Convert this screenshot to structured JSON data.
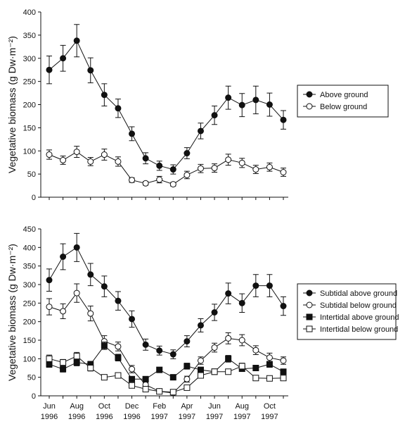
{
  "chart_data": [
    {
      "type": "line",
      "ylabel": "Vegetative biomass (g Dw·m⁻²)",
      "ylim": [
        0,
        400
      ],
      "yticks": [
        0,
        50,
        100,
        150,
        200,
        250,
        300,
        350,
        400
      ],
      "series": [
        {
          "name": "Above ground",
          "marker": "filled-circle",
          "values": [
            275,
            300,
            338,
            274,
            221,
            192,
            137,
            84,
            68,
            60,
            95,
            143,
            177,
            215,
            199,
            210,
            200,
            167
          ],
          "errors": [
            30,
            28,
            35,
            27,
            24,
            20,
            15,
            12,
            10,
            10,
            12,
            17,
            20,
            25,
            25,
            30,
            25,
            20
          ]
        },
        {
          "name": "Below ground",
          "marker": "open-circle",
          "values": [
            92,
            80,
            98,
            77,
            92,
            77,
            37,
            30,
            38,
            28,
            48,
            62,
            63,
            81,
            74,
            60,
            65,
            54
          ],
          "errors": [
            10,
            9,
            12,
            9,
            12,
            10,
            5,
            4,
            7,
            4,
            8,
            9,
            9,
            12,
            10,
            9,
            9,
            9
          ]
        }
      ]
    },
    {
      "type": "line",
      "ylabel": "Vegetative biomass (g Dw·m⁻²)",
      "ylim": [
        0,
        450
      ],
      "yticks": [
        0,
        50,
        100,
        150,
        200,
        250,
        300,
        350,
        400,
        450
      ],
      "xticks": [
        {
          "month": "Jun",
          "year": "1996"
        },
        {
          "month": "Aug",
          "year": "1996"
        },
        {
          "month": "Oct",
          "year": "1996"
        },
        {
          "month": "Dec",
          "year": "1996"
        },
        {
          "month": "Feb",
          "year": "1997"
        },
        {
          "month": "Apr",
          "year": "1997"
        },
        {
          "month": "Jun",
          "year": "1997"
        },
        {
          "month": "Aug",
          "year": "1997"
        },
        {
          "month": "Oct",
          "year": "1997"
        }
      ],
      "series": [
        {
          "name": "Subtidal above ground",
          "marker": "filled-circle",
          "values": [
            312,
            375,
            400,
            327,
            295,
            256,
            207,
            138,
            122,
            112,
            147,
            190,
            225,
            276,
            250,
            297,
            297,
            242
          ],
          "errors": [
            30,
            35,
            38,
            30,
            28,
            25,
            22,
            15,
            12,
            12,
            15,
            18,
            22,
            28,
            25,
            30,
            30,
            25
          ]
        },
        {
          "name": "Subtidal below ground",
          "marker": "open-circle",
          "values": [
            240,
            228,
            277,
            222,
            147,
            133,
            72,
            30,
            12,
            8,
            45,
            95,
            130,
            155,
            150,
            123,
            103,
            95
          ],
          "errors": [
            22,
            20,
            25,
            20,
            15,
            12,
            10,
            6,
            4,
            3,
            8,
            10,
            12,
            15,
            15,
            12,
            12,
            10
          ]
        },
        {
          "name": "Intertidal above ground",
          "marker": "filled-square",
          "values": [
            85,
            72,
            90,
            85,
            135,
            103,
            45,
            45,
            70,
            50,
            80,
            70,
            65,
            100,
            73,
            75,
            85,
            65
          ],
          "errors": [
            8,
            8,
            9,
            8,
            10,
            9,
            6,
            5,
            7,
            6,
            8,
            7,
            7,
            9,
            7,
            7,
            8,
            7
          ]
        },
        {
          "name": "Intertidal below ground",
          "marker": "open-square",
          "values": [
            100,
            90,
            107,
            75,
            50,
            55,
            28,
            18,
            12,
            10,
            22,
            55,
            65,
            65,
            80,
            48,
            47,
            48
          ],
          "errors": [
            10,
            8,
            10,
            8,
            5,
            6,
            4,
            3,
            2,
            2,
            4,
            6,
            6,
            6,
            8,
            5,
            5,
            5
          ]
        }
      ]
    }
  ]
}
